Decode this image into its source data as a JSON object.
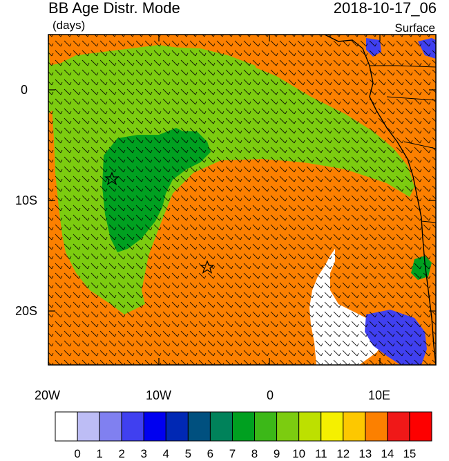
{
  "title": "BB Age Distr. Mode",
  "datetime": "2018-10-17_06",
  "units": "(days)",
  "level": "Surface",
  "axes": {
    "lon_ticks": [
      "20W",
      "10W",
      "0",
      "10E"
    ],
    "lat_ticks": [
      "0",
      "10S",
      "20S"
    ]
  },
  "colorbar": {
    "labels": [
      "0",
      "1",
      "2",
      "3",
      "4",
      "5",
      "6",
      "7",
      "8",
      "9",
      "10",
      "11",
      "12",
      "13",
      "14",
      "15"
    ],
    "colors": [
      "#ffffff",
      "#bdbdf5",
      "#8080f0",
      "#4040f0",
      "#0000f0",
      "#0028b4",
      "#00507f",
      "#00825a",
      "#00a020",
      "#3cb818",
      "#7ccc10",
      "#bde000",
      "#f5f000",
      "#fdc800",
      "#fc8000",
      "#f01818",
      "#fd0000"
    ]
  },
  "markers": [
    "star",
    "star"
  ],
  "colors": {
    "age13": "#fc8000",
    "age10": "#7ccc10",
    "age8": "#00a020",
    "age0": "#ffffff",
    "age3": "#4040f0"
  }
}
